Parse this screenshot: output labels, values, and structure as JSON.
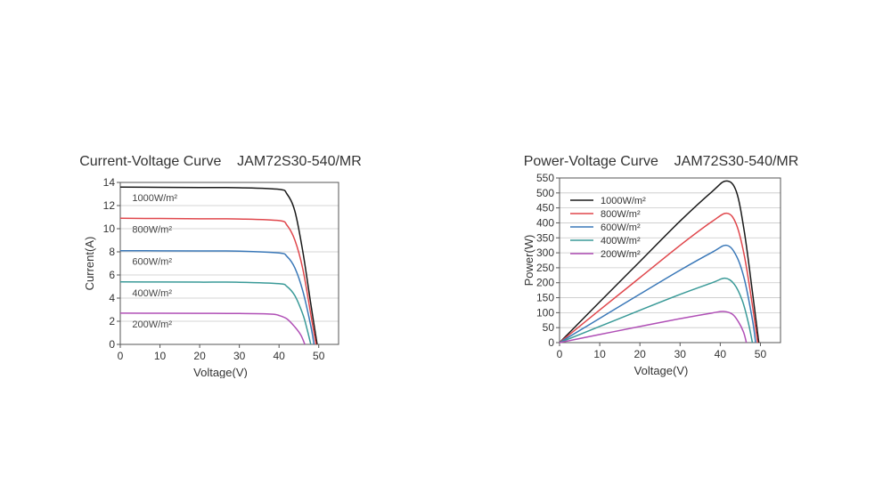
{
  "chart_data": [
    {
      "type": "line",
      "title": "Current-Voltage Curve    JAM72S30-540/MR",
      "xlabel": "Voltage(V)",
      "ylabel": "Current(A)",
      "xlim": [
        0,
        55
      ],
      "ylim": [
        0,
        14
      ],
      "xticks": [
        0,
        10,
        20,
        30,
        40,
        50
      ],
      "yticks": [
        0,
        2,
        4,
        6,
        8,
        10,
        12,
        14
      ],
      "grid": "horizontal",
      "series": [
        {
          "name": "1000W/m²",
          "color": "#1a1a1a",
          "isc": 13.6,
          "voc": 49.6,
          "x": [
            0,
            10,
            20,
            30,
            40,
            42,
            44,
            46,
            48,
            49.6
          ],
          "y": [
            13.6,
            13.58,
            13.56,
            13.54,
            13.4,
            13.0,
            11.5,
            8.0,
            3.5,
            0
          ]
        },
        {
          "name": "800W/m²",
          "color": "#e0474c",
          "isc": 10.9,
          "voc": 49.3,
          "x": [
            0,
            10,
            20,
            30,
            40,
            42,
            44,
            46,
            48,
            49.3
          ],
          "y": [
            10.9,
            10.88,
            10.86,
            10.84,
            10.7,
            10.3,
            9.0,
            6.5,
            2.6,
            0
          ]
        },
        {
          "name": "600W/m²",
          "color": "#3a78b8",
          "isc": 8.1,
          "voc": 48.8,
          "x": [
            0,
            10,
            20,
            30,
            40,
            42,
            44,
            46,
            48,
            48.8
          ],
          "y": [
            8.1,
            8.09,
            8.08,
            8.06,
            7.9,
            7.6,
            6.6,
            4.6,
            1.6,
            0
          ]
        },
        {
          "name": "400W/m²",
          "color": "#3a9a98",
          "isc": 5.4,
          "voc": 48.0,
          "x": [
            0,
            10,
            20,
            30,
            40,
            42,
            44,
            46,
            47,
            48.0
          ],
          "y": [
            5.4,
            5.39,
            5.38,
            5.37,
            5.25,
            5.0,
            4.2,
            2.6,
            1.4,
            0
          ]
        },
        {
          "name": "200W/m²",
          "color": "#b04fb6",
          "isc": 2.7,
          "voc": 46.5,
          "x": [
            0,
            10,
            20,
            30,
            38,
            40,
            42,
            44,
            45.5,
            46.5
          ],
          "y": [
            2.7,
            2.69,
            2.68,
            2.67,
            2.62,
            2.5,
            2.2,
            1.5,
            0.8,
            0
          ]
        }
      ],
      "annotations": [
        "1000W/m²",
        "800W/m²",
        "600W/m²",
        "400W/m²",
        "200W/m²"
      ]
    },
    {
      "type": "line",
      "title": "Power-Voltage Curve    JAM72S30-540/MR",
      "xlabel": "Voltage(V)",
      "ylabel": "Power(W)",
      "xlim": [
        0,
        55
      ],
      "ylim": [
        0,
        550
      ],
      "xticks": [
        0,
        10,
        20,
        30,
        40,
        50
      ],
      "yticks": [
        0,
        50,
        100,
        150,
        200,
        250,
        300,
        350,
        400,
        450,
        500,
        550
      ],
      "grid": "horizontal",
      "legend": "top-left",
      "series": [
        {
          "name": "1000W/m²",
          "color": "#1a1a1a",
          "x": [
            0,
            10,
            20,
            30,
            38,
            41.5,
            44,
            46,
            48,
            49.6
          ],
          "y": [
            0,
            136,
            271,
            406,
            505,
            540,
            505,
            370,
            170,
            0
          ]
        },
        {
          "name": "800W/m²",
          "color": "#e0474c",
          "x": [
            0,
            10,
            20,
            30,
            38,
            41.7,
            44,
            46,
            48,
            49.3
          ],
          "y": [
            0,
            109,
            217,
            325,
            405,
            432,
            395,
            290,
            125,
            0
          ]
        },
        {
          "name": "600W/m²",
          "color": "#3a78b8",
          "x": [
            0,
            10,
            20,
            30,
            38,
            41.6,
            44,
            46,
            48,
            48.8
          ],
          "y": [
            0,
            81,
            162,
            242,
            302,
            325,
            290,
            212,
            77,
            0
          ]
        },
        {
          "name": "400W/m²",
          "color": "#3a9a98",
          "x": [
            0,
            10,
            20,
            30,
            38,
            41.2,
            43.5,
            45.5,
            47,
            48.0
          ],
          "y": [
            0,
            54,
            108,
            161,
            200,
            215,
            195,
            140,
            66,
            0
          ]
        },
        {
          "name": "200W/m²",
          "color": "#b04fb6",
          "x": [
            0,
            10,
            20,
            30,
            38,
            40.8,
            43,
            44.5,
            45.8,
            46.5
          ],
          "y": [
            0,
            27,
            54,
            80,
            99,
            104,
            95,
            70,
            35,
            0
          ]
        }
      ]
    }
  ]
}
